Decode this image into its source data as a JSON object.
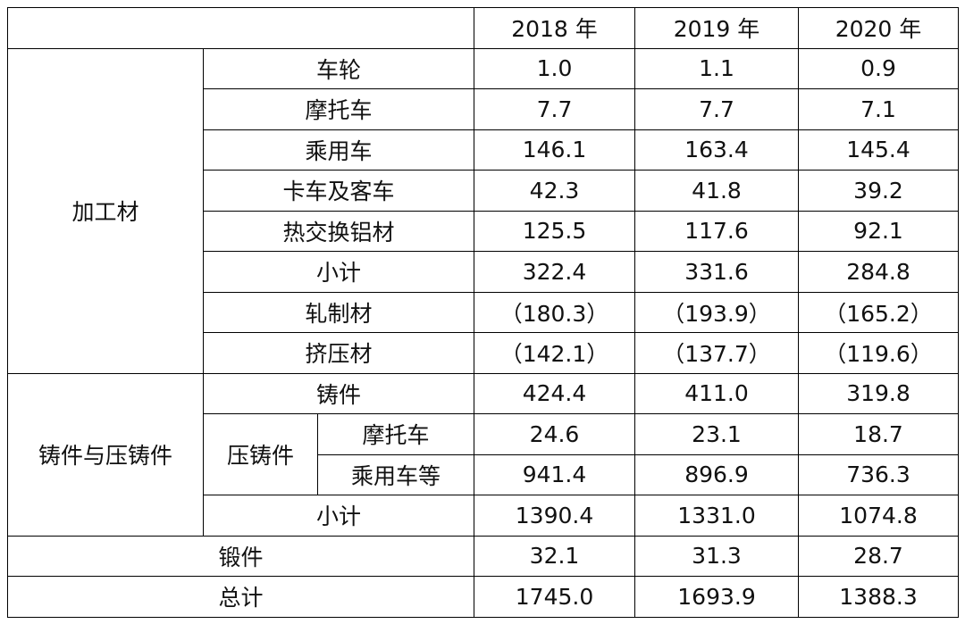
{
  "table": {
    "columns": [
      "2018 年",
      "2019 年",
      "2020 年"
    ],
    "sections": [
      {
        "label": "加工材",
        "items": [
          {
            "label": "车轮",
            "values": [
              "1.0",
              "1.1",
              "0.9"
            ]
          },
          {
            "label": "摩托车",
            "values": [
              "7.7",
              "7.7",
              "7.1"
            ]
          },
          {
            "label": "乘用车",
            "values": [
              "146.1",
              "163.4",
              "145.4"
            ]
          },
          {
            "label": "卡车及客车",
            "values": [
              "42.3",
              "41.8",
              "39.2"
            ]
          },
          {
            "label": "热交换铝材",
            "values": [
              "125.5",
              "117.6",
              "92.1"
            ]
          },
          {
            "label": "小计",
            "values": [
              "322.4",
              "331.6",
              "284.8"
            ]
          },
          {
            "label": "轧制材",
            "values": [
              "（180.3）",
              "（193.9）",
              "（165.2）"
            ]
          },
          {
            "label": "挤压材",
            "values": [
              "（142.1）",
              "（137.7）",
              "（119.6）"
            ]
          }
        ]
      },
      {
        "label": "铸件与压铸件",
        "items": [
          {
            "label": "铸件",
            "values": [
              "424.4",
              "411.0",
              "319.8"
            ]
          },
          {
            "label": "压铸件",
            "items": [
              {
                "label": "摩托车",
                "values": [
                  "24.6",
                  "23.1",
                  "18.7"
                ]
              },
              {
                "label": "乘用车等",
                "values": [
                  "941.4",
                  "896.9",
                  "736.3"
                ]
              }
            ]
          },
          {
            "label": "小计",
            "values": [
              "1390.4",
              "1331.0",
              "1074.8"
            ]
          }
        ]
      }
    ],
    "totals": [
      {
        "label": "锻件",
        "values": [
          "32.1",
          "31.3",
          "28.7"
        ]
      },
      {
        "label": "总计",
        "values": [
          "1745.0",
          "1693.9",
          "1388.3"
        ]
      }
    ]
  }
}
